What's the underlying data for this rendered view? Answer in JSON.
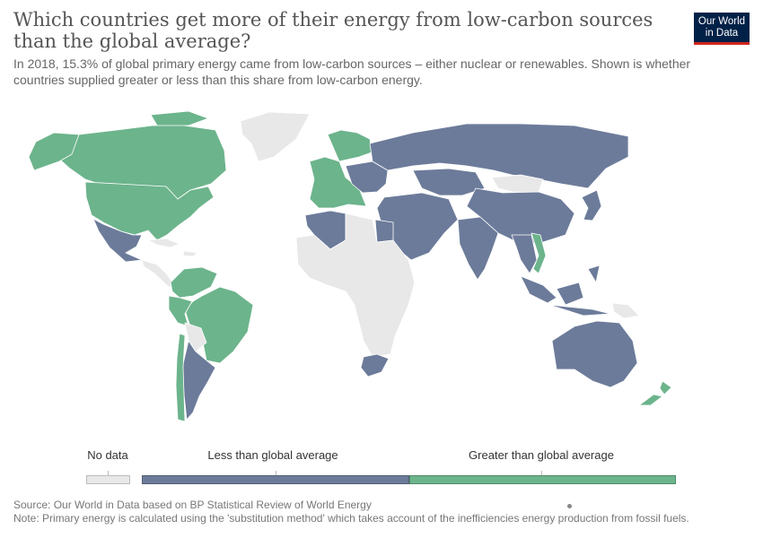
{
  "header": {
    "title": "Which countries get more of their energy from low-carbon sources than the global average?",
    "subtitle": "In 2018, 15.3% of global primary energy came from low-carbon sources – either nuclear or renewables. Shown is whether countries supplied greater or less than this share from low-carbon energy."
  },
  "logo": {
    "text": "Our World\nin Data",
    "bg_color": "#002147",
    "accent_color": "#ce261e"
  },
  "colors": {
    "no_data": "#e8e8e8",
    "less": "#6c7b9a",
    "greater": "#6cb48c",
    "border": "#ffffff"
  },
  "legend": {
    "no_data": "No data",
    "less": "Less than global average",
    "greater": "Greater than global average"
  },
  "footer": {
    "source": "Source: Our World in Data based on BP Statistical Review of World Energy",
    "note": "Note: Primary energy is calculated using the 'substitution method' which takes account of the inefficiencies energy production from fossil fuels."
  },
  "map": {
    "regions": [
      {
        "name": "Canada",
        "category": "greater"
      },
      {
        "name": "United States",
        "category": "greater"
      },
      {
        "name": "Alaska",
        "category": "greater"
      },
      {
        "name": "Greenland",
        "category": "no_data"
      },
      {
        "name": "Mexico",
        "category": "less"
      },
      {
        "name": "Central America",
        "category": "no_data"
      },
      {
        "name": "Caribbean",
        "category": "no_data"
      },
      {
        "name": "Colombia and Venezuela",
        "category": "greater"
      },
      {
        "name": "Brazil",
        "category": "greater"
      },
      {
        "name": "Peru",
        "category": "greater"
      },
      {
        "name": "Bolivia and Paraguay",
        "category": "no_data"
      },
      {
        "name": "Argentina",
        "category": "less"
      },
      {
        "name": "Chile",
        "category": "greater"
      },
      {
        "name": "Western Europe",
        "category": "greater"
      },
      {
        "name": "Eastern Europe",
        "category": "less"
      },
      {
        "name": "Russia",
        "category": "less"
      },
      {
        "name": "Kazakhstan",
        "category": "less"
      },
      {
        "name": "Mongolia",
        "category": "no_data"
      },
      {
        "name": "China",
        "category": "less"
      },
      {
        "name": "Japan",
        "category": "less"
      },
      {
        "name": "Middle East",
        "category": "less"
      },
      {
        "name": "India",
        "category": "less"
      },
      {
        "name": "Vietnam",
        "category": "greater"
      },
      {
        "name": "Southeast Asia",
        "category": "less"
      },
      {
        "name": "Indonesia",
        "category": "less"
      },
      {
        "name": "Papua New Guinea",
        "category": "no_data"
      },
      {
        "name": "Australia",
        "category": "less"
      },
      {
        "name": "New Zealand",
        "category": "greater"
      },
      {
        "name": "Algeria",
        "category": "less"
      },
      {
        "name": "Egypt",
        "category": "less"
      },
      {
        "name": "Africa",
        "category": "no_data"
      },
      {
        "name": "South Africa",
        "category": "less"
      }
    ]
  }
}
